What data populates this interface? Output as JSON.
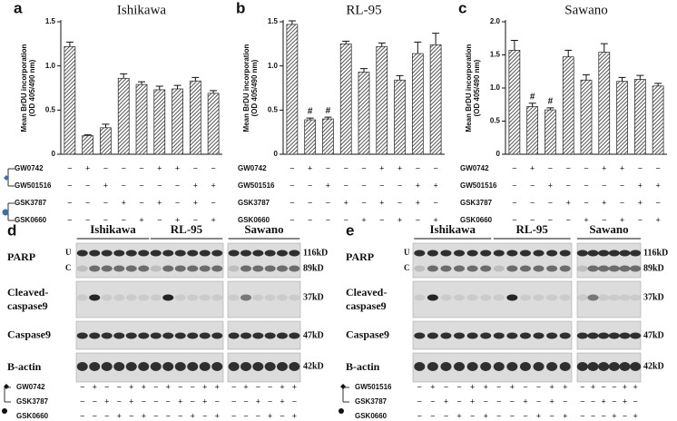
{
  "chart_data": [
    {
      "type": "bar",
      "panel": "a",
      "title": "Ishikawa",
      "y_label": [
        "Mean BrDU incorporation",
        "(OD 405/490 nm)"
      ],
      "color": "#555555",
      "values": [
        1.22,
        0.21,
        0.3,
        0.86,
        0.79,
        0.73,
        0.74,
        0.83,
        0.69
      ],
      "errors": [
        0.05,
        0.01,
        0.04,
        0.05,
        0.03,
        0.04,
        0.04,
        0.04,
        0.03
      ],
      "markers": [
        null,
        null,
        null,
        null,
        null,
        null,
        null,
        null,
        null
      ],
      "ylim": [
        0,
        1.5
      ],
      "yticks": [
        0,
        0.5,
        {
          "value": 1,
          "label": "1.0"
        },
        1.5
      ],
      "treatments": [
        {
          "label": "GW0742",
          "signs": [
            "−",
            "+",
            "−",
            "−",
            "−",
            "+",
            "+",
            "−",
            "−"
          ]
        },
        {
          "label": "GW501516",
          "signs": [
            "−",
            "−",
            "+",
            "−",
            "−",
            "−",
            "−",
            "+",
            "+"
          ]
        },
        {
          "label": "GSK3787",
          "signs": [
            "−",
            "−",
            "−",
            "+",
            "−",
            "+",
            "−",
            "+",
            "−"
          ]
        },
        {
          "label": "GSK0660",
          "signs": [
            "−",
            "−",
            "−",
            "−",
            "+",
            "−",
            "+",
            "−",
            "+"
          ]
        }
      ]
    },
    {
      "type": "bar",
      "panel": "b",
      "title": "RL-95",
      "y_label": [
        "Mean BrDU incorporation",
        "(OD 405/490 nm)"
      ],
      "color": "#555555",
      "values": [
        1.47,
        0.39,
        0.4,
        1.25,
        0.93,
        1.22,
        0.84,
        1.14,
        1.24
      ],
      "errors": [
        0.04,
        0.02,
        0.02,
        0.03,
        0.04,
        0.04,
        0.05,
        0.13,
        0.13
      ],
      "markers": [
        null,
        "#",
        "#",
        null,
        null,
        null,
        null,
        null,
        null
      ],
      "ylim": [
        0,
        1.5
      ],
      "yticks": [
        0,
        0.5,
        {
          "value": 1,
          "label": "1.0"
        },
        1.5
      ],
      "treatments": [
        {
          "label": "GW0742",
          "signs": [
            "−",
            "+",
            "−",
            "−",
            "−",
            "+",
            "+",
            "−",
            "−"
          ]
        },
        {
          "label": "GW501516",
          "signs": [
            "−",
            "−",
            "+",
            "−",
            "−",
            "−",
            "−",
            "+",
            "+"
          ]
        },
        {
          "label": "GSK3787",
          "signs": [
            "−",
            "−",
            "−",
            "+",
            "−",
            "+",
            "−",
            "+",
            "−"
          ]
        },
        {
          "label": "GSK0660",
          "signs": [
            "−",
            "−",
            "−",
            "−",
            "+",
            "−",
            "+",
            "−",
            "+"
          ]
        }
      ]
    },
    {
      "type": "bar",
      "panel": "c",
      "title": "Sawano",
      "y_label": [
        "Mean BrDU incorporation",
        "(OD 405/490 nm)"
      ],
      "color": "#555555",
      "values": [
        1.57,
        0.72,
        0.67,
        1.47,
        1.12,
        1.54,
        1.1,
        1.13,
        1.03
      ],
      "errors": [
        0.15,
        0.05,
        0.03,
        0.1,
        0.08,
        0.13,
        0.06,
        0.06,
        0.04
      ],
      "markers": [
        null,
        "#",
        "#",
        null,
        null,
        null,
        null,
        null,
        null
      ],
      "ylim": [
        0,
        2
      ],
      "yticks": [
        0,
        0.5,
        {
          "value": 1,
          "label": "1.0"
        },
        1.5,
        {
          "value": 2,
          "label": "2.0"
        }
      ],
      "treatments": [
        {
          "label": "GW0742",
          "signs": [
            "−",
            "+",
            "−",
            "−",
            "−",
            "+",
            "+",
            "−",
            "−"
          ]
        },
        {
          "label": "GW501516",
          "signs": [
            "−",
            "−",
            "+",
            "−",
            "−",
            "−",
            "−",
            "+",
            "+"
          ]
        },
        {
          "label": "GSK3787",
          "signs": [
            "−",
            "−",
            "−",
            "+",
            "−",
            "+",
            "−",
            "+",
            "−"
          ]
        },
        {
          "label": "GSK0660",
          "signs": [
            "−",
            "−",
            "−",
            "−",
            "+",
            "−",
            "+",
            "−",
            "+"
          ]
        }
      ]
    }
  ],
  "blots": [
    {
      "panel": "d",
      "cell_lines": [
        "Ishikawa",
        "RL-95",
        "Sawano"
      ],
      "rows": [
        {
          "label": "PARP",
          "sublabels": [
            "U",
            "C"
          ],
          "sizes": [
            "116kD",
            "89kD"
          ]
        },
        {
          "label": [
            "Cleaved-",
            "caspase9"
          ],
          "sizes": [
            "37kD"
          ]
        },
        {
          "label": "Caspase9",
          "sizes": [
            "47kD"
          ]
        },
        {
          "label": "B-actin",
          "sizes": [
            "42kD"
          ]
        }
      ],
      "treatments": [
        {
          "label": "GW0742",
          "signs": [
            "−",
            "+",
            "−",
            "−",
            "+",
            "+",
            "−",
            "+",
            "−",
            "−",
            "+",
            "+",
            "−",
            "+",
            "−",
            "−",
            "+",
            "+"
          ]
        },
        {
          "label": "GSK3787",
          "signs": [
            "−",
            "−",
            "+",
            "−",
            "+",
            "−",
            "−",
            "−",
            "+",
            "−",
            "+",
            "−",
            "−",
            "−",
            "+",
            "−",
            "+",
            "−"
          ]
        },
        {
          "label": "GSK0660",
          "signs": [
            "−",
            "−",
            "−",
            "+",
            "−",
            "+",
            "−",
            "−",
            "−",
            "+",
            "−",
            "+",
            "−",
            "−",
            "−",
            "+",
            "−",
            "+"
          ]
        }
      ]
    },
    {
      "panel": "e",
      "cell_lines": [
        "Ishikawa",
        "RL-95",
        "Sawano"
      ],
      "rows": [
        {
          "label": "PARP",
          "sublabels": [
            "U",
            "C"
          ],
          "sizes": [
            "116kD",
            "89kD"
          ]
        },
        {
          "label": [
            "Cleaved-",
            "caspase9"
          ],
          "sizes": [
            "37kD"
          ]
        },
        {
          "label": "Caspase9",
          "sizes": [
            "47kD"
          ]
        },
        {
          "label": "B-actin",
          "sizes": [
            "42kD"
          ]
        }
      ],
      "treatments": [
        {
          "label": "GW501516",
          "signs": [
            "−",
            "+",
            "−",
            "−",
            "+",
            "+",
            "−",
            "+",
            "−",
            "−",
            "+",
            "+",
            "−",
            "+",
            "−",
            "−",
            "+",
            "+"
          ]
        },
        {
          "label": "GSK3787",
          "signs": [
            "−",
            "−",
            "+",
            "−",
            "+",
            "−",
            "−",
            "−",
            "+",
            "−",
            "+",
            "−",
            "−",
            "−",
            "+",
            "−",
            "+",
            "−"
          ]
        },
        {
          "label": "GSK0660",
          "signs": [
            "−",
            "−",
            "−",
            "+",
            "−",
            "+",
            "−",
            "−",
            "−",
            "+",
            "−",
            "+",
            "−",
            "−",
            "−",
            "+",
            "−",
            "+"
          ]
        }
      ]
    }
  ]
}
